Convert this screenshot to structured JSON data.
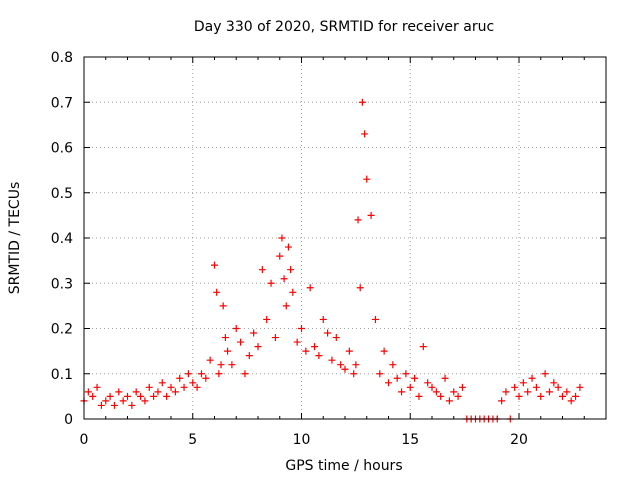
{
  "chart_data": {
    "type": "scatter",
    "title": "Day 330 of 2020, SRMTID for receiver aruc",
    "xlabel": "GPS time / hours",
    "ylabel": "SRMTID / TECUs",
    "xlim": [
      0,
      24
    ],
    "ylim": [
      0,
      0.8
    ],
    "x_ticks": [
      0,
      5,
      10,
      15,
      20
    ],
    "x_tick_labels": [
      "0",
      "5",
      "10",
      "15",
      "20"
    ],
    "y_ticks": [
      0,
      0.1,
      0.2,
      0.3,
      0.4,
      0.5,
      0.6,
      0.7,
      0.8
    ],
    "y_tick_labels": [
      "0",
      "0.1",
      "0.2",
      "0.3",
      "0.4",
      "0.5",
      "0.6",
      "0.7",
      "0.8"
    ],
    "grid": true,
    "marker": "plus",
    "color": "#ff0000",
    "series": [
      {
        "name": "SRMTID",
        "x": [
          0.0,
          0.2,
          0.4,
          0.6,
          0.8,
          1.0,
          1.2,
          1.4,
          1.6,
          1.8,
          2.0,
          2.2,
          2.4,
          2.6,
          2.8,
          3.0,
          3.2,
          3.4,
          3.6,
          3.8,
          4.0,
          4.2,
          4.4,
          4.6,
          4.8,
          5.0,
          5.2,
          5.4,
          5.6,
          5.8,
          6.0,
          6.1,
          6.2,
          6.3,
          6.4,
          6.5,
          6.6,
          6.8,
          7.0,
          7.2,
          7.4,
          7.6,
          7.8,
          8.0,
          8.2,
          8.4,
          8.6,
          8.8,
          9.0,
          9.1,
          9.2,
          9.3,
          9.4,
          9.5,
          9.6,
          9.8,
          10.0,
          10.2,
          10.4,
          10.6,
          10.8,
          11.0,
          11.2,
          11.4,
          11.6,
          11.8,
          12.0,
          12.2,
          12.4,
          12.5,
          12.6,
          12.7,
          12.8,
          12.9,
          13.0,
          13.2,
          13.4,
          13.6,
          13.8,
          14.0,
          14.2,
          14.4,
          14.6,
          14.8,
          15.0,
          15.2,
          15.4,
          15.6,
          15.8,
          16.0,
          16.2,
          16.4,
          16.6,
          16.8,
          17.0,
          17.2,
          17.4,
          17.6,
          17.8,
          18.0,
          18.2,
          18.4,
          18.6,
          18.8,
          19.0,
          19.2,
          19.4,
          19.6,
          19.8,
          20.0,
          20.2,
          20.4,
          20.6,
          20.8,
          21.0,
          21.2,
          21.4,
          21.6,
          21.8,
          22.0,
          22.2,
          22.4,
          22.6,
          22.8
        ],
        "y": [
          0.04,
          0.06,
          0.05,
          0.07,
          0.03,
          0.04,
          0.05,
          0.03,
          0.06,
          0.04,
          0.05,
          0.03,
          0.06,
          0.05,
          0.04,
          0.07,
          0.05,
          0.06,
          0.08,
          0.05,
          0.07,
          0.06,
          0.09,
          0.07,
          0.1,
          0.08,
          0.07,
          0.1,
          0.09,
          0.13,
          0.34,
          0.28,
          0.1,
          0.12,
          0.25,
          0.18,
          0.15,
          0.12,
          0.2,
          0.17,
          0.1,
          0.14,
          0.19,
          0.16,
          0.33,
          0.22,
          0.3,
          0.18,
          0.36,
          0.4,
          0.31,
          0.25,
          0.38,
          0.33,
          0.28,
          0.17,
          0.2,
          0.15,
          0.29,
          0.16,
          0.14,
          0.22,
          0.19,
          0.13,
          0.18,
          0.12,
          0.11,
          0.15,
          0.1,
          0.12,
          0.44,
          0.29,
          0.7,
          0.63,
          0.53,
          0.45,
          0.22,
          0.1,
          0.15,
          0.08,
          0.12,
          0.09,
          0.06,
          0.1,
          0.07,
          0.09,
          0.05,
          0.16,
          0.08,
          0.07,
          0.06,
          0.05,
          0.09,
          0.04,
          0.06,
          0.05,
          0.07,
          0.0,
          0.0,
          0.0,
          0.0,
          0.0,
          0.0,
          0.0,
          0.0,
          0.04,
          0.06,
          0.0,
          0.07,
          0.05,
          0.08,
          0.06,
          0.09,
          0.07,
          0.05,
          0.1,
          0.06,
          0.08,
          0.07,
          0.05,
          0.06,
          0.04,
          0.05,
          0.07
        ]
      }
    ]
  }
}
